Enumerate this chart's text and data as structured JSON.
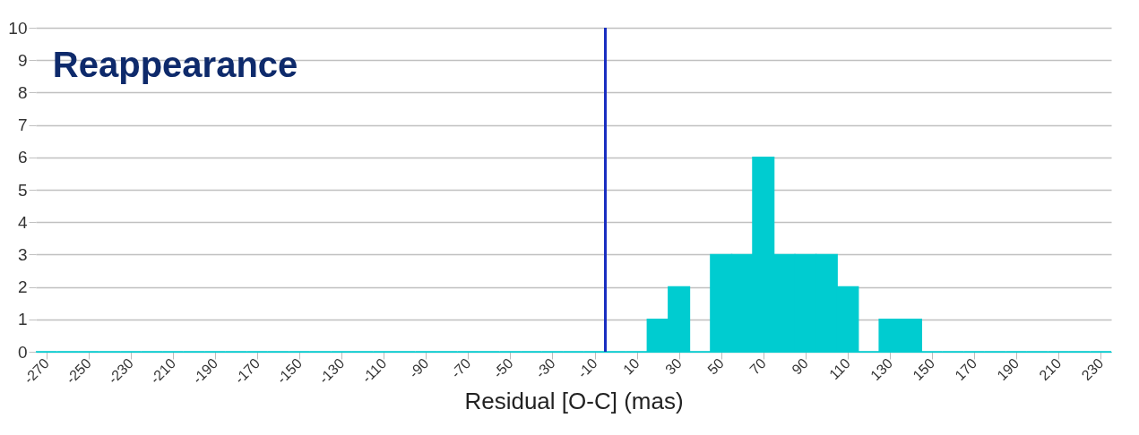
{
  "chart_data": {
    "type": "histogram",
    "title": "Reappearance",
    "xlabel": "Residual [O-C] (mas)",
    "bins": [
      -275,
      -265,
      -255,
      -245,
      -235,
      -225,
      -215,
      -205,
      -195,
      -185,
      -175,
      -165,
      -155,
      -145,
      -135,
      -125,
      -115,
      -105,
      -95,
      -85,
      -75,
      -65,
      -55,
      -45,
      -35,
      -25,
      -15,
      -5,
      5,
      15,
      25,
      35,
      45,
      55,
      65,
      75,
      85,
      95,
      105,
      115,
      125,
      135,
      145,
      155,
      165,
      175,
      185,
      195,
      205,
      215,
      225,
      235
    ],
    "values": [
      0,
      0,
      0,
      0,
      0,
      0,
      0,
      0,
      0,
      0,
      0,
      0,
      0,
      0,
      0,
      0,
      0,
      0,
      0,
      0,
      0,
      0,
      0,
      0,
      0,
      0,
      0,
      0,
      0,
      1,
      2,
      0,
      3,
      3,
      6,
      3,
      3,
      3,
      2,
      0,
      1,
      1,
      0,
      0,
      0,
      0,
      0,
      0,
      0,
      0,
      0
    ],
    "color": "#00ccd0",
    "xlim": [
      -275,
      235
    ],
    "xticks": [
      -270,
      -250,
      -230,
      -210,
      -190,
      -170,
      -150,
      -130,
      -110,
      -90,
      -70,
      -50,
      -30,
      -10,
      10,
      30,
      50,
      70,
      90,
      110,
      130,
      150,
      170,
      190,
      210,
      230
    ],
    "ylim": [
      0,
      10
    ],
    "yticks": [
      0,
      1,
      2,
      3,
      4,
      5,
      6,
      7,
      8,
      9,
      10
    ],
    "grid": "y",
    "ref_lines": [
      {
        "axis": "x",
        "value": -5,
        "color": "#1a2fc0"
      }
    ]
  }
}
